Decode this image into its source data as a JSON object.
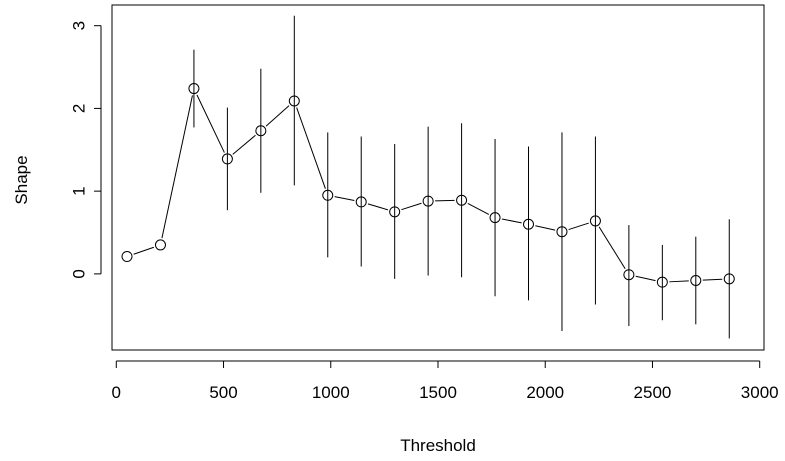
{
  "chart_data": {
    "type": "line",
    "title": "",
    "xlabel": "Threshold",
    "ylabel": "Shape",
    "xlim": [
      -20,
      3020
    ],
    "ylim": [
      -0.92,
      3.25
    ],
    "xticks": [
      0,
      500,
      1000,
      1500,
      2000,
      2500,
      3000
    ],
    "yticks": [
      0,
      1,
      2,
      3
    ],
    "grid": false,
    "legend": "none",
    "series": [
      {
        "x": [
          50,
          206,
          362,
          518,
          674,
          830,
          986,
          1142,
          1298,
          1454,
          1610,
          1766,
          1922,
          2078,
          2234,
          2390,
          2546,
          2702,
          2858
        ],
        "y": [
          0.21,
          0.35,
          2.24,
          1.39,
          1.73,
          2.09,
          0.95,
          0.87,
          0.75,
          0.88,
          0.89,
          0.68,
          0.6,
          0.51,
          0.64,
          -0.01,
          -0.1,
          -0.08,
          -0.06
        ],
        "lower": [
          0.21,
          0.35,
          1.77,
          0.77,
          0.98,
          1.07,
          0.2,
          0.09,
          -0.06,
          -0.02,
          -0.04,
          -0.27,
          -0.32,
          -0.69,
          -0.37,
          -0.63,
          -0.56,
          -0.61,
          -0.78
        ],
        "upper": [
          0.21,
          0.35,
          2.71,
          2.01,
          2.48,
          3.12,
          1.71,
          1.66,
          1.57,
          1.78,
          1.82,
          1.63,
          1.54,
          1.71,
          1.66,
          0.59,
          0.35,
          0.45,
          0.66
        ]
      }
    ]
  }
}
